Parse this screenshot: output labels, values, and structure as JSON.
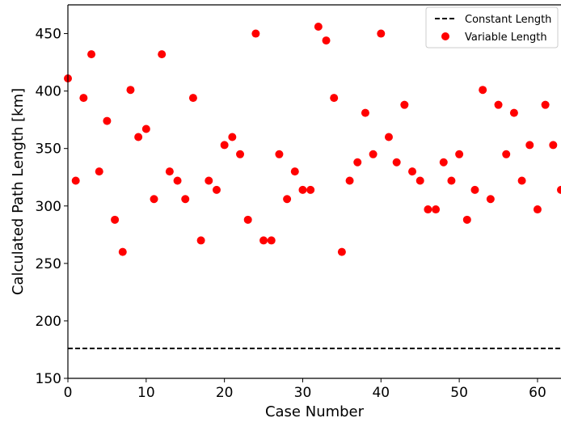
{
  "chart_data": {
    "type": "scatter",
    "xlabel": "Case Number",
    "ylabel": "Calculated Path Length [km]",
    "xlim": [
      0,
      63
    ],
    "ylim": [
      150,
      475
    ],
    "xticks": [
      0,
      10,
      20,
      30,
      40,
      50,
      60
    ],
    "yticks": [
      150,
      200,
      250,
      300,
      350,
      400,
      450
    ],
    "grid": false,
    "legend_position": "top-right",
    "series": [
      {
        "name": "Constant Length",
        "kind": "hline",
        "style": "dashed",
        "color": "#000000",
        "y": 176
      },
      {
        "name": "Variable Length",
        "kind": "points",
        "color": "#ff0000",
        "x": [
          0,
          1,
          2,
          3,
          4,
          5,
          6,
          7,
          8,
          9,
          10,
          11,
          12,
          13,
          14,
          15,
          16,
          17,
          18,
          19,
          20,
          21,
          22,
          23,
          24,
          25,
          26,
          27,
          28,
          29,
          30,
          31,
          32,
          33,
          34,
          35,
          36,
          37,
          38,
          39,
          40,
          41,
          42,
          43,
          44,
          45,
          46,
          47,
          48,
          49,
          50,
          51,
          52,
          53,
          54,
          55,
          56,
          57,
          58,
          59,
          60,
          61,
          62,
          63
        ],
        "y": [
          411,
          322,
          394,
          432,
          330,
          374,
          288,
          260,
          401,
          360,
          367,
          306,
          432,
          330,
          322,
          306,
          394,
          270,
          322,
          314,
          353,
          360,
          345,
          288,
          450,
          270,
          270,
          345,
          306,
          330,
          314,
          314,
          456,
          444,
          394,
          260,
          322,
          338,
          381,
          345,
          450,
          360,
          338,
          388,
          330,
          322,
          297,
          297,
          338,
          322,
          345,
          288,
          314,
          401,
          306,
          388,
          345,
          381,
          322,
          353,
          297,
          388,
          353,
          314
        ]
      }
    ]
  }
}
